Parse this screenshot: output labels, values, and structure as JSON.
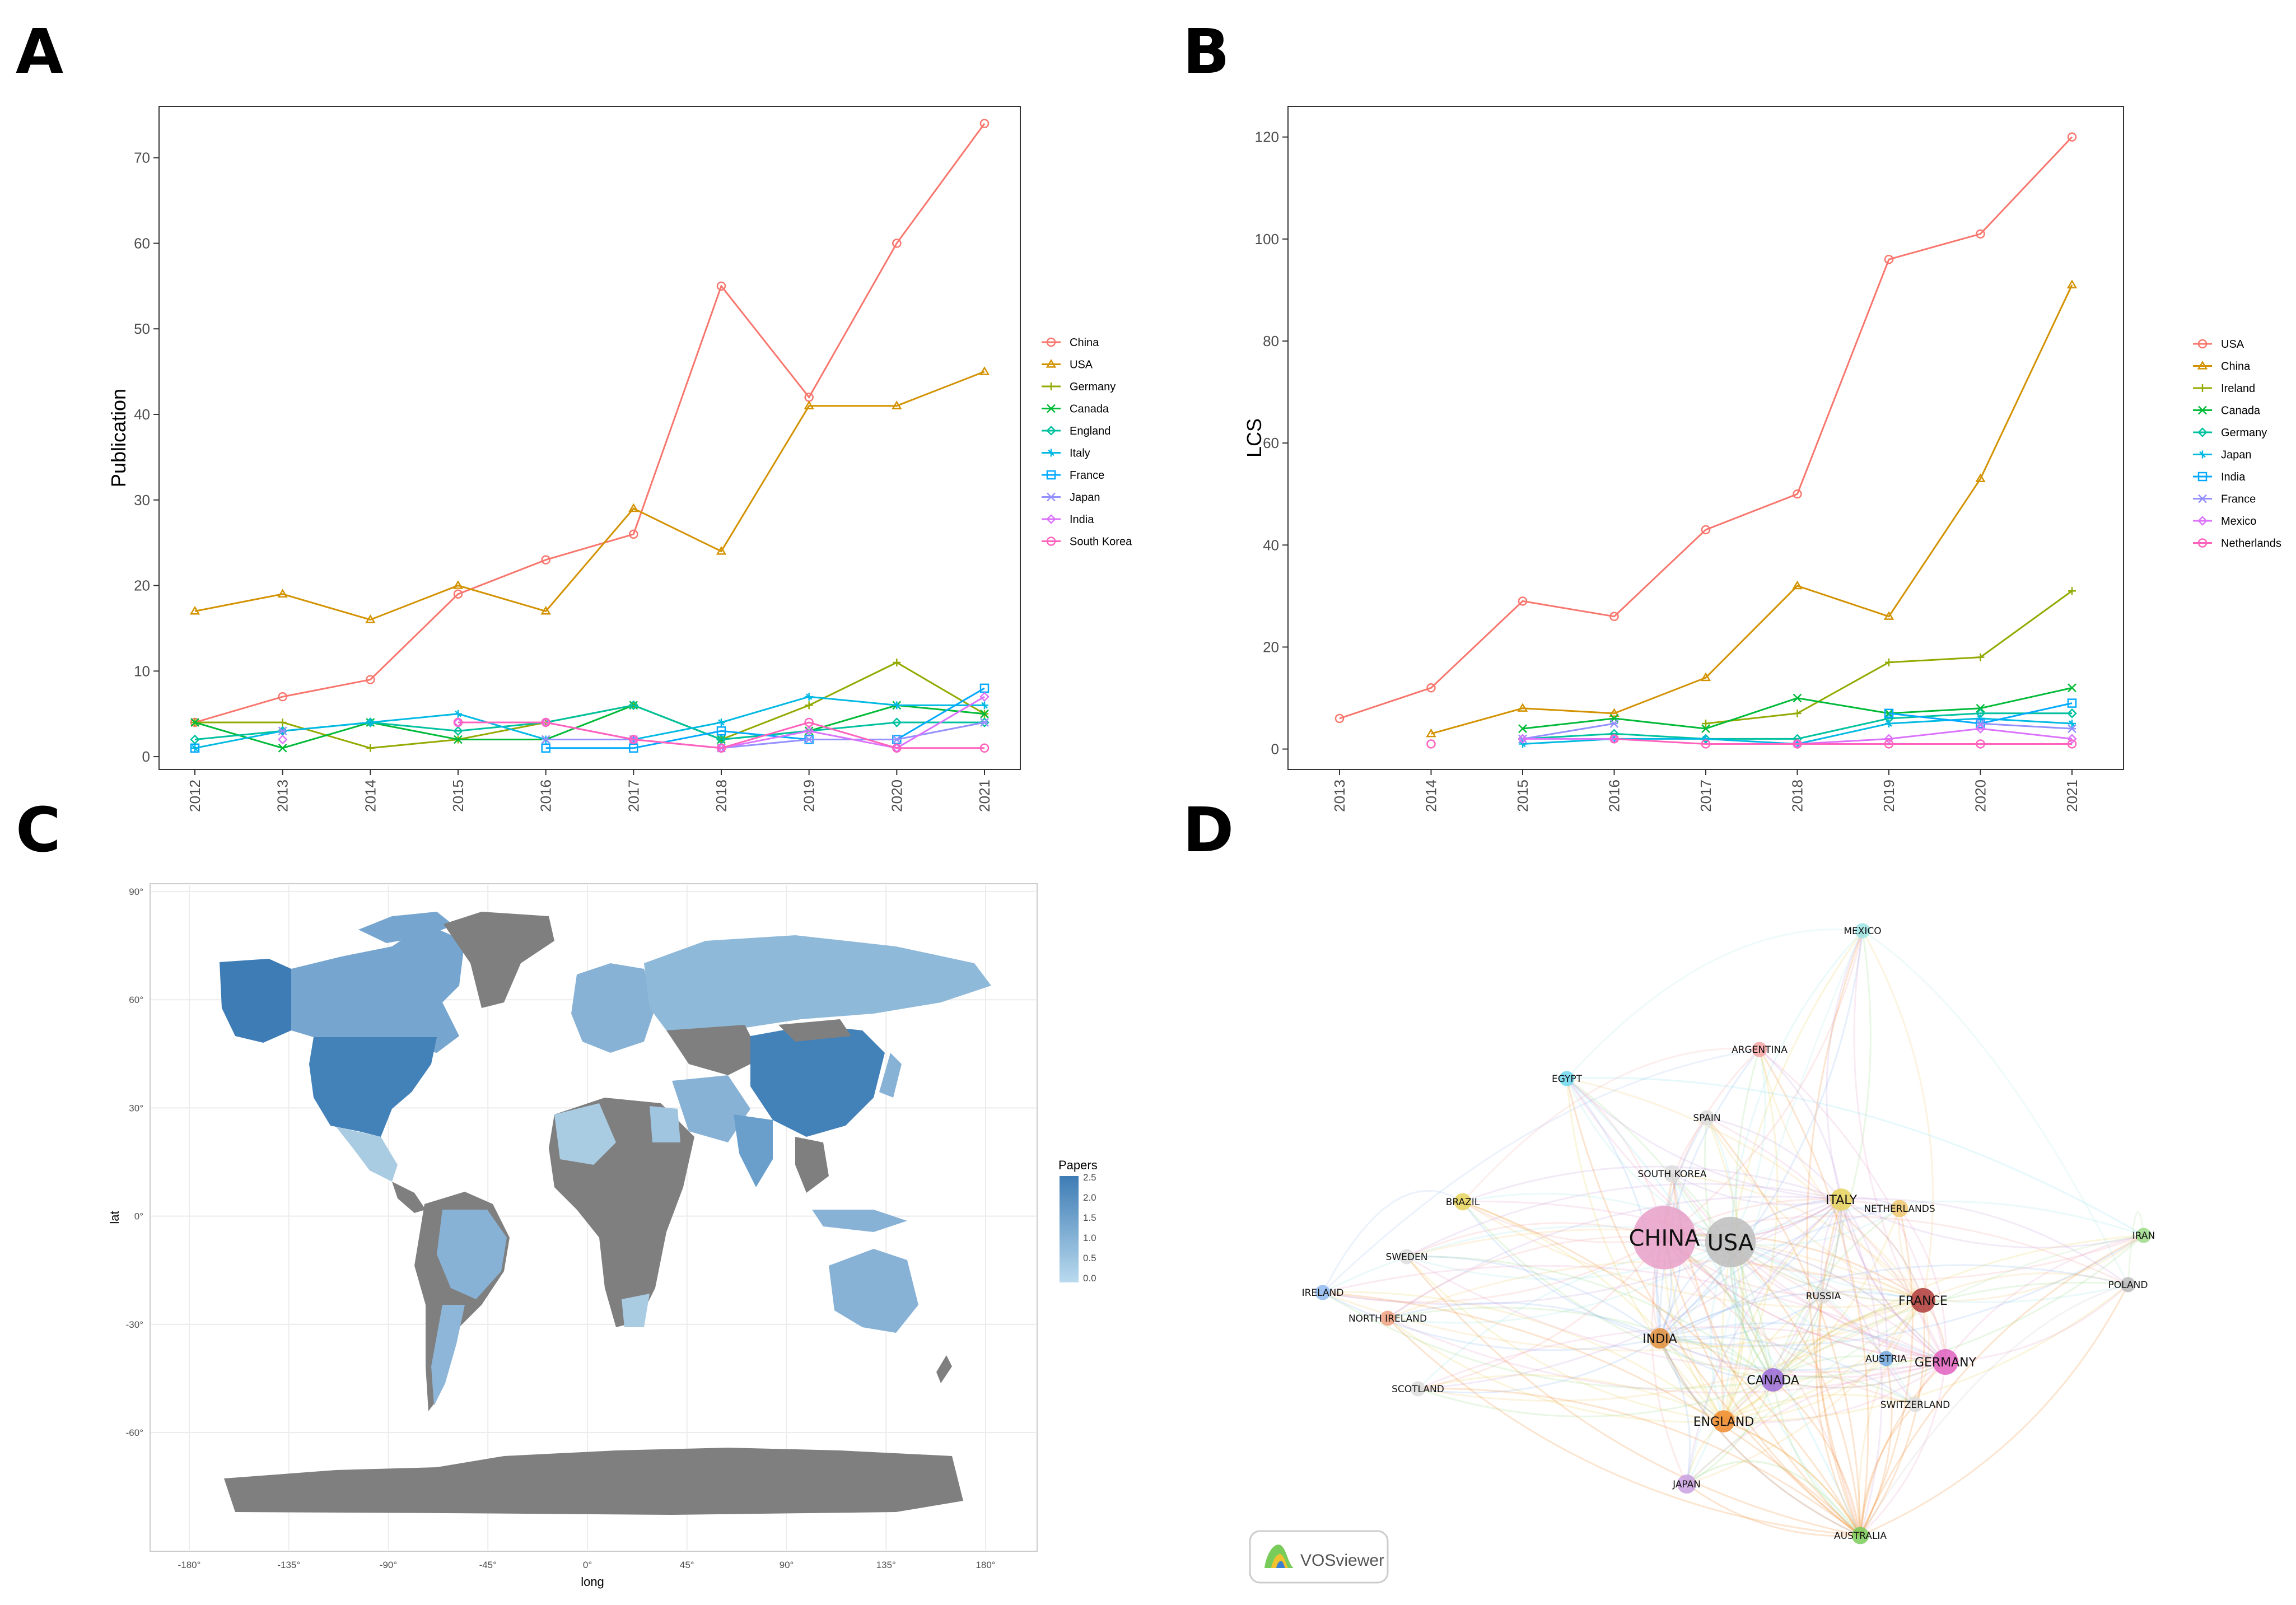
{
  "panels": {
    "a": "A",
    "b": "B",
    "c": "C",
    "d": "D"
  },
  "colors": {
    "c1": "#F8766D",
    "c2": "#D39200",
    "c3": "#93AA00",
    "c4": "#00BA38",
    "c5": "#00C19F",
    "c6": "#00B9E3",
    "c7": "#619CFF",
    "c8": "#DB72FB",
    "c9": "#FF61C3",
    "c10": "#E36EBA"
  },
  "chart_data": [
    {
      "type": "line",
      "id": "A",
      "title": "",
      "xlabel": "",
      "ylabel": "Publication",
      "x": [
        "2012",
        "2013",
        "2014",
        "2015",
        "2016",
        "2017",
        "2018",
        "2019",
        "2020",
        "2021"
      ],
      "ylim": [
        -1.5,
        76
      ],
      "yticks": [
        0,
        10,
        20,
        30,
        40,
        50,
        60,
        70
      ],
      "legend_position": "right",
      "series": [
        {
          "name": "China",
          "color": "#F8766D",
          "marker": "circle",
          "values": [
            4,
            7,
            9,
            19,
            23,
            26,
            55,
            42,
            60,
            74
          ]
        },
        {
          "name": "USA",
          "color": "#D39200",
          "marker": "triangle",
          "values": [
            17,
            19,
            16,
            20,
            17,
            29,
            24,
            41,
            41,
            45
          ]
        },
        {
          "name": "Germany",
          "color": "#93AA00",
          "marker": "plus",
          "values": [
            4,
            4,
            1,
            2,
            4,
            6,
            2,
            6,
            11,
            5
          ]
        },
        {
          "name": "Canada",
          "color": "#00BA38",
          "marker": "cross",
          "values": [
            4,
            1,
            4,
            2,
            2,
            6,
            2,
            3,
            6,
            5
          ]
        },
        {
          "name": "England",
          "color": "#00C19F",
          "marker": "diamond",
          "values": [
            2,
            3,
            4,
            3,
            4,
            6,
            2,
            3,
            4,
            4
          ]
        },
        {
          "name": "Italy",
          "color": "#00B9E3",
          "marker": "star",
          "values": [
            1,
            3,
            4,
            5,
            2,
            2,
            4,
            7,
            6,
            6
          ]
        },
        {
          "name": "France",
          "color": "#00A9FF",
          "marker": "square",
          "values": [
            1,
            null,
            null,
            null,
            1,
            1,
            3,
            2,
            2,
            8
          ]
        },
        {
          "name": "Japan",
          "color": "#9590FF",
          "marker": "asterisk",
          "values": [
            null,
            3,
            null,
            null,
            2,
            2,
            1,
            2,
            2,
            4
          ]
        },
        {
          "name": "India",
          "color": "#DB72FB",
          "marker": "diamond",
          "values": [
            null,
            2,
            null,
            4,
            4,
            2,
            1,
            3,
            1,
            7
          ]
        },
        {
          "name": "South Korea",
          "color": "#FF62BC",
          "marker": "circle",
          "values": [
            null,
            null,
            null,
            4,
            4,
            2,
            1,
            4,
            1,
            1
          ]
        }
      ]
    },
    {
      "type": "line",
      "id": "B",
      "title": "",
      "xlabel": "",
      "ylabel": "LCS",
      "x": [
        "2013",
        "2014",
        "2015",
        "2016",
        "2017",
        "2018",
        "2019",
        "2020",
        "2021"
      ],
      "ylim": [
        -4,
        126
      ],
      "yticks": [
        0,
        20,
        40,
        60,
        80,
        100,
        120
      ],
      "legend_position": "right",
      "series": [
        {
          "name": "USA",
          "color": "#F8766D",
          "marker": "circle",
          "values": [
            6,
            12,
            29,
            26,
            43,
            50,
            96,
            101,
            120
          ]
        },
        {
          "name": "China",
          "color": "#D39200",
          "marker": "triangle",
          "values": [
            null,
            3,
            8,
            7,
            14,
            32,
            26,
            53,
            91
          ]
        },
        {
          "name": "Ireland",
          "color": "#93AA00",
          "marker": "plus",
          "values": [
            null,
            null,
            null,
            null,
            5,
            7,
            17,
            18,
            31
          ]
        },
        {
          "name": "Canada",
          "color": "#00BA38",
          "marker": "cross",
          "values": [
            null,
            null,
            4,
            6,
            4,
            10,
            7,
            8,
            12
          ]
        },
        {
          "name": "Germany",
          "color": "#00C19F",
          "marker": "diamond",
          "values": [
            null,
            null,
            2,
            3,
            2,
            2,
            6,
            7,
            7
          ]
        },
        {
          "name": "Japan",
          "color": "#00B9E3",
          "marker": "star",
          "values": [
            null,
            null,
            1,
            2,
            2,
            1,
            5,
            6,
            5
          ]
        },
        {
          "name": "India",
          "color": "#00A9FF",
          "marker": "square",
          "values": [
            null,
            null,
            null,
            null,
            null,
            null,
            7,
            5,
            9
          ]
        },
        {
          "name": "France",
          "color": "#9590FF",
          "marker": "asterisk",
          "values": [
            null,
            null,
            2,
            5,
            null,
            null,
            null,
            5,
            4
          ]
        },
        {
          "name": "Mexico",
          "color": "#DB72FB",
          "marker": "diamond",
          "values": [
            null,
            null,
            2,
            2,
            null,
            1,
            2,
            4,
            2
          ]
        },
        {
          "name": "Netherlands",
          "color": "#FF62BC",
          "marker": "circle",
          "values": [
            null,
            1,
            null,
            2,
            1,
            1,
            1,
            1,
            1
          ]
        }
      ]
    },
    {
      "type": "heatmap",
      "id": "C",
      "subtype": "choropleth-map",
      "xlabel": "long",
      "ylabel": "lat",
      "xticks": [
        "-180°",
        "-135°",
        "-90°",
        "-45°",
        "0°",
        "45°",
        "90°",
        "135°",
        "180°"
      ],
      "yticks": [
        "90°",
        "60°",
        "30°",
        "0°",
        "-30°",
        "-60°"
      ],
      "legend": {
        "title": "Papers",
        "ticks": [
          "2.5",
          "2.0",
          "1.5",
          "1.0",
          "0.5",
          "0.0"
        ]
      },
      "regions": [
        {
          "name": "USA",
          "value": 2.4
        },
        {
          "name": "China",
          "value": 2.4
        },
        {
          "name": "Canada",
          "value": 1.6
        },
        {
          "name": "Alaska",
          "value": 2.3
        },
        {
          "name": "Russia",
          "value": 0.8
        },
        {
          "name": "Brazil",
          "value": 0.9
        },
        {
          "name": "Australia",
          "value": 1.0
        },
        {
          "name": "Greenland",
          "value": null
        },
        {
          "name": "Antarctica",
          "value": null
        }
      ]
    },
    {
      "type": "scatter",
      "id": "D",
      "subtype": "network",
      "brand": "VOSviewer",
      "nodes": [
        {
          "name": "CHINA",
          "weight": 74,
          "color": "#E8A0C8"
        },
        {
          "name": "USA",
          "weight": 45,
          "color": "#BDBDBD"
        },
        {
          "name": "MEXICO",
          "weight": 2,
          "color": "#9FE5E5"
        },
        {
          "name": "ARGENTINA",
          "weight": 2,
          "color": "#F4A3A3"
        },
        {
          "name": "EGYPT",
          "weight": 2,
          "color": "#6DD8F0"
        },
        {
          "name": "SPAIN",
          "weight": 2,
          "color": "#DDDDDD"
        },
        {
          "name": "SOUTH KOREA",
          "weight": 3,
          "color": "#DDDDDD"
        },
        {
          "name": "BRAZIL",
          "weight": 3,
          "color": "#E6D35A"
        },
        {
          "name": "ITALY",
          "weight": 6,
          "color": "#E6D35A"
        },
        {
          "name": "NETHERLANDS",
          "weight": 3,
          "color": "#F0C870"
        },
        {
          "name": "IRAN",
          "weight": 2,
          "color": "#9CDB8A"
        },
        {
          "name": "POLAND",
          "weight": 2,
          "color": "#BBBBBB"
        },
        {
          "name": "SWEDEN",
          "weight": 2,
          "color": "#DDDDDD"
        },
        {
          "name": "IRELAND",
          "weight": 2,
          "color": "#8FB8F0"
        },
        {
          "name": "NORTH IRELAND",
          "weight": 2,
          "color": "#F0A080"
        },
        {
          "name": "SCOTLAND",
          "weight": 2,
          "color": "#DDDDDD"
        },
        {
          "name": "RUSSIA",
          "weight": 2,
          "color": "#DDDDDD"
        },
        {
          "name": "FRANCE",
          "weight": 8,
          "color": "#B03A3A"
        },
        {
          "name": "INDIA",
          "weight": 5,
          "color": "#E08F3A"
        },
        {
          "name": "AUSTRIA",
          "weight": 2,
          "color": "#6FA8E0"
        },
        {
          "name": "GERMANY",
          "weight": 9,
          "color": "#E060C0"
        },
        {
          "name": "CANADA",
          "weight": 7,
          "color": "#9A6AD6"
        },
        {
          "name": "SWITZERLAND",
          "weight": 2,
          "color": "#DDDDDD"
        },
        {
          "name": "ENGLAND",
          "weight": 6,
          "color": "#F08A2A"
        },
        {
          "name": "JAPAN",
          "weight": 4,
          "color": "#C9A0E0"
        },
        {
          "name": "AUSTRALIA",
          "weight": 3,
          "color": "#7ACC5A"
        }
      ]
    }
  ]
}
